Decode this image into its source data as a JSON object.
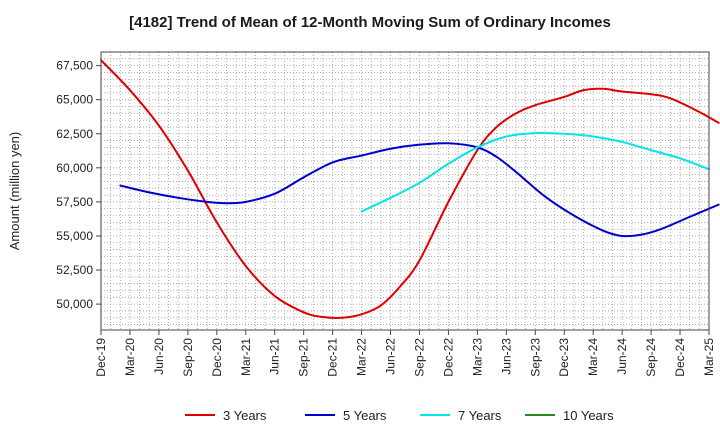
{
  "chart_data": {
    "type": "line",
    "title": "[4182]  Trend of Mean of 12-Month Moving Sum of Ordinary Incomes",
    "ylabel": "Amount (million yen)",
    "xlabel": "",
    "ylim": [
      48100,
      68500
    ],
    "yticks": [
      50000,
      52500,
      55000,
      57500,
      60000,
      62500,
      65000,
      67500
    ],
    "ytick_labels": [
      "50,000",
      "52,500",
      "55,000",
      "57,500",
      "60,000",
      "62,500",
      "65,000",
      "67,500"
    ],
    "x_start": "Dec-19",
    "x_months_total": 63,
    "xticks": [
      0,
      3,
      6,
      9,
      12,
      15,
      18,
      21,
      24,
      27,
      30,
      33,
      36,
      39,
      42,
      45,
      48,
      51,
      54,
      57,
      60,
      63
    ],
    "xtick_labels": [
      "Dec-19",
      "Mar-20",
      "Jun-20",
      "Sep-20",
      "Dec-20",
      "Mar-21",
      "Jun-21",
      "Sep-21",
      "Dec-21",
      "Mar-22",
      "Jun-22",
      "Sep-22",
      "Dec-22",
      "Mar-23",
      "Jun-23",
      "Sep-23",
      "Dec-23",
      "Mar-24",
      "Jun-24",
      "Sep-24",
      "Dec-24",
      "Mar-25"
    ],
    "grid": true,
    "legend_position": "bottom",
    "series": [
      {
        "name": "3 Years",
        "color": "#e00000",
        "points": [
          [
            0,
            67900
          ],
          [
            3,
            65700
          ],
          [
            6,
            63100
          ],
          [
            9,
            59800
          ],
          [
            12,
            56000
          ],
          [
            15,
            52800
          ],
          [
            18,
            50600
          ],
          [
            21,
            49400
          ],
          [
            23,
            49050
          ],
          [
            25,
            49000
          ],
          [
            27,
            49250
          ],
          [
            29,
            49900
          ],
          [
            31,
            51300
          ],
          [
            33,
            53200
          ],
          [
            36,
            57500
          ],
          [
            39,
            61300
          ],
          [
            41,
            63000
          ],
          [
            43,
            64000
          ],
          [
            45,
            64600
          ],
          [
            48,
            65200
          ],
          [
            50,
            65700
          ],
          [
            52,
            65800
          ],
          [
            54,
            65600
          ],
          [
            57,
            65400
          ],
          [
            59,
            65100
          ],
          [
            62,
            64100
          ],
          [
            64,
            63300
          ]
        ]
      },
      {
        "name": "5 Years",
        "color": "#0000cc",
        "points": [
          [
            2,
            58700
          ],
          [
            5,
            58200
          ],
          [
            8,
            57800
          ],
          [
            11,
            57500
          ],
          [
            13,
            57400
          ],
          [
            15,
            57500
          ],
          [
            18,
            58100
          ],
          [
            21,
            59300
          ],
          [
            24,
            60400
          ],
          [
            27,
            60900
          ],
          [
            30,
            61400
          ],
          [
            33,
            61700
          ],
          [
            36,
            61800
          ],
          [
            39,
            61500
          ],
          [
            41,
            60800
          ],
          [
            43,
            59700
          ],
          [
            46,
            57900
          ],
          [
            49,
            56500
          ],
          [
            52,
            55400
          ],
          [
            54,
            55000
          ],
          [
            56,
            55100
          ],
          [
            58,
            55500
          ],
          [
            61,
            56400
          ],
          [
            64,
            57300
          ]
        ]
      },
      {
        "name": "7 Years",
        "color": "#00e5e5",
        "points": [
          [
            27,
            56800
          ],
          [
            30,
            57800
          ],
          [
            33,
            58900
          ],
          [
            36,
            60300
          ],
          [
            39,
            61500
          ],
          [
            42,
            62300
          ],
          [
            45,
            62550
          ],
          [
            48,
            62500
          ],
          [
            51,
            62300
          ],
          [
            54,
            61900
          ],
          [
            57,
            61300
          ],
          [
            60,
            60700
          ],
          [
            63,
            59900
          ]
        ]
      },
      {
        "name": "10 Years",
        "color": "#228b22",
        "points": []
      }
    ]
  }
}
